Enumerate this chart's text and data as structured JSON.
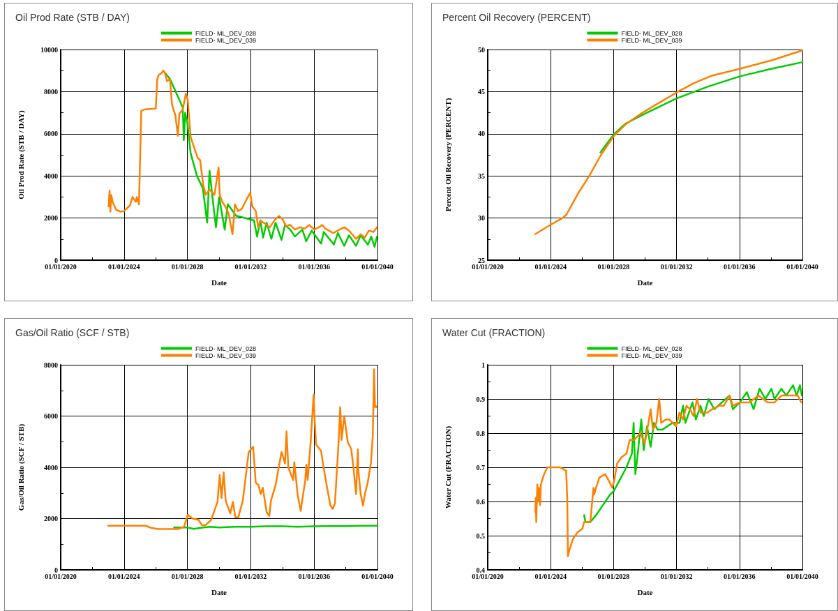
{
  "chart_data": [
    {
      "type": "line",
      "title": "Oil Prod Rate (STB / DAY)",
      "xlabel": "Date",
      "ylabel": "Oil Prod Rate (STB / DAY)",
      "grid": true,
      "legend": "top",
      "marker": "none",
      "line_style": "solid",
      "xlim": [
        "2020-01-01",
        "2040-01-01"
      ],
      "xticks": [
        {
          "value": "2020-01-01",
          "label": "01/01/2020"
        },
        {
          "value": "2022-01-01",
          "label": null
        },
        {
          "value": "2024-01-01",
          "label": "01/01/2024"
        },
        {
          "value": "2026-01-01",
          "label": null
        },
        {
          "value": "2028-01-01",
          "label": "01/01/2028"
        },
        {
          "value": "2030-01-01",
          "label": null
        },
        {
          "value": "2032-01-01",
          "label": "01/01/2032"
        },
        {
          "value": "2034-01-01",
          "label": null
        },
        {
          "value": "2036-01-01",
          "label": "01/01/2036"
        },
        {
          "value": "2038-01-01",
          "label": null
        },
        {
          "value": "2040-01-01",
          "label": "01/01/2040"
        }
      ],
      "ylim": [
        0,
        10000
      ],
      "yticks": [
        0,
        {
          "value": 1000,
          "label": null
        },
        2000,
        {
          "value": 3000,
          "label": null
        },
        4000,
        {
          "value": 5000,
          "label": null
        },
        6000,
        {
          "value": 7000,
          "label": null
        },
        8000,
        {
          "value": 9000,
          "label": null
        },
        10000
      ],
      "series": [
        {
          "name": "FIELD- ML_DEV_028",
          "color": "#00cc00",
          "x": [
            "2026-06-20",
            "2026-11-25",
            "2027-09-15",
            "2027-10-10",
            "2027-11-10",
            "2028-01-01",
            "2028-03-15",
            "2028-08-10",
            "2028-12-20",
            "2029-04-01",
            "2029-05-25",
            "2029-07-20",
            "2029-10-20",
            "2030-01-01",
            "2030-05-10",
            "2030-07-20",
            "2031-01-25",
            "2032-03-15",
            "2032-05-25",
            "2032-08-10",
            "2032-10-10",
            "2033-01-01",
            "2033-04-20",
            "2033-07-25",
            "2033-12-10",
            "2034-03-01",
            "2034-07-01",
            "2034-10-15",
            "2035-04-05",
            "2035-07-01",
            "2035-11-05",
            "2036-06-10",
            "2036-08-10",
            "2037-04-01",
            "2037-07-01",
            "2037-11-25",
            "2038-03-15",
            "2038-08-25",
            "2038-12-10",
            "2039-05-25",
            "2039-08-10",
            "2039-10-25",
            "2039-12-20"
          ],
          "values": [
            9000,
            8600,
            7250,
            5700,
            7000,
            6500,
            5080,
            3980,
            3430,
            1780,
            4250,
            3200,
            1560,
            2990,
            1450,
            2660,
            2110,
            1890,
            1120,
            1890,
            1070,
            1780,
            1010,
            1780,
            960,
            1670,
            1450,
            1120,
            1450,
            900,
            1400,
            790,
            1340,
            740,
            1290,
            680,
            1180,
            680,
            1180,
            740,
            1120,
            630,
            1120
          ]
        },
        {
          "name": "FIELD- ML_DEV_039",
          "color": "#ff8000",
          "x": [
            "2023-01-10",
            "2023-02-01",
            "2023-02-20",
            "2023-03-10",
            "2023-04-15",
            "2023-07-01",
            "2023-10-15",
            "2024-01-01",
            "2024-05-15",
            "2024-07-15",
            "2024-10-01",
            "2024-10-20",
            "2024-12-10",
            "2025-01-01",
            "2025-02-01",
            "2025-04-10",
            "2026-01-01",
            "2026-02-05",
            "2026-03-10",
            "2026-05-15",
            "2026-06-20",
            "2026-08-01",
            "2026-09-15",
            "2026-11-25",
            "2027-01-10",
            "2027-04-01",
            "2027-05-25",
            "2027-07-01",
            "2027-09-15",
            "2027-11-25",
            "2028-01-10",
            "2028-03-15",
            "2028-05-10",
            "2028-08-25",
            "2028-10-20",
            "2029-01-01",
            "2029-03-01",
            "2029-05-25",
            "2029-09-15",
            "2029-12-20",
            "2030-01-15",
            "2030-03-15",
            "2030-05-25",
            "2030-08-10",
            "2030-11-05",
            "2031-01-01",
            "2031-03-15",
            "2031-06-10",
            "2031-09-25",
            "2031-12-20",
            "2032-02-05",
            "2032-04-25",
            "2032-06-20",
            "2032-08-10",
            "2032-11-25",
            "2033-03-15",
            "2033-07-01",
            "2033-10-15",
            "2034-01-01",
            "2034-03-25",
            "2034-07-01",
            "2034-10-15",
            "2035-02-05",
            "2035-05-25",
            "2035-09-15",
            "2036-01-01",
            "2036-04-20",
            "2036-07-01",
            "2036-09-15",
            "2037-03-15",
            "2037-07-01",
            "2037-11-25",
            "2038-03-15",
            "2038-08-25",
            "2038-12-10",
            "2039-03-15",
            "2039-06-15",
            "2039-10-01",
            "2039-12-20"
          ],
          "values": [
            2550,
            3300,
            2300,
            3100,
            2750,
            2400,
            2300,
            2330,
            2600,
            3000,
            2770,
            3000,
            2650,
            4500,
            7100,
            7150,
            7200,
            8600,
            8800,
            8870,
            9000,
            8900,
            8500,
            8600,
            7400,
            6850,
            5900,
            6950,
            7150,
            7900,
            7600,
            5850,
            5500,
            4850,
            4750,
            3550,
            3100,
            3350,
            3100,
            4400,
            3100,
            2770,
            2550,
            2200,
            1230,
            2650,
            2330,
            2440,
            2880,
            3200,
            2550,
            2330,
            1560,
            1890,
            1730,
            1560,
            1890,
            2100,
            1950,
            1620,
            1670,
            1450,
            1560,
            1500,
            1670,
            1450,
            1560,
            1670,
            1500,
            1290,
            1400,
            1560,
            1400,
            1010,
            1230,
            1070,
            1400,
            1340,
            1560
          ]
        }
      ]
    },
    {
      "type": "line",
      "title": "Percent Oil Recovery (PERCENT)",
      "xlabel": "Date",
      "ylabel": "Percent Oil Recovery (PERCENT)",
      "grid": true,
      "legend": "top",
      "marker": "none",
      "line_style": "solid",
      "xlim": [
        "2020-01-01",
        "2040-01-01"
      ],
      "xticks": [
        {
          "value": "2020-01-01",
          "label": "01/01/2020"
        },
        {
          "value": "2022-01-01",
          "label": null
        },
        {
          "value": "2024-01-01",
          "label": "01/01/2024"
        },
        {
          "value": "2026-01-01",
          "label": null
        },
        {
          "value": "2028-01-01",
          "label": "01/01/2028"
        },
        {
          "value": "2030-01-01",
          "label": null
        },
        {
          "value": "2032-01-01",
          "label": "01/01/2032"
        },
        {
          "value": "2034-01-01",
          "label": null
        },
        {
          "value": "2036-01-01",
          "label": "01/01/2036"
        },
        {
          "value": "2038-01-01",
          "label": null
        },
        {
          "value": "2040-01-01",
          "label": "01/01/2040"
        }
      ],
      "ylim": [
        25,
        50
      ],
      "yticks": [
        25,
        {
          "value": 27.5,
          "label": null
        },
        30,
        {
          "value": 32.5,
          "label": null
        },
        35,
        {
          "value": 37.5,
          "label": null
        },
        40,
        {
          "value": 42.5,
          "label": null
        },
        45,
        {
          "value": 47.5,
          "label": null
        },
        50
      ],
      "series": [
        {
          "name": "FIELD- ML_DEV_028",
          "color": "#00cc00",
          "x": [
            "2027-03-01",
            "2028-01-01",
            "2028-10-01",
            "2030-01-01",
            "2032-01-01",
            "2034-01-01",
            "2036-01-01",
            "2038-01-01",
            "2040-01-01"
          ],
          "values": [
            37.8,
            39.9,
            41.2,
            42.4,
            44.2,
            45.6,
            46.8,
            47.7,
            48.5
          ]
        },
        {
          "name": "FIELD- ML_DEV_039",
          "color": "#ff8000",
          "x": [
            "2023-01-10",
            "2024-01-01",
            "2024-10-01",
            "2025-01-01",
            "2025-09-15",
            "2026-06-15",
            "2027-03-15",
            "2028-01-01",
            "2028-10-01",
            "2029-11-01",
            "2030-12-01",
            "2032-01-01",
            "2033-02-01",
            "2034-04-01",
            "2036-01-01",
            "2038-01-01",
            "2040-01-01"
          ],
          "values": [
            28.1,
            29.2,
            30.0,
            30.4,
            32.8,
            35.0,
            37.5,
            39.7,
            41.1,
            42.5,
            43.7,
            44.9,
            46.0,
            46.9,
            47.7,
            48.7,
            49.9
          ]
        }
      ]
    },
    {
      "type": "line",
      "title": "Gas/Oil Ratio (SCF / STB)",
      "xlabel": "Date",
      "ylabel": "Gas/Oil Ratio (SCF / STB)",
      "grid": true,
      "legend": "top",
      "marker": "none",
      "line_style": "solid",
      "xlim": [
        "2020-01-01",
        "2040-01-01"
      ],
      "xticks": [
        {
          "value": "2020-01-01",
          "label": "01/01/2020"
        },
        {
          "value": "2022-01-01",
          "label": null
        },
        {
          "value": "2024-01-01",
          "label": "01/01/2024"
        },
        {
          "value": "2026-01-01",
          "label": null
        },
        {
          "value": "2028-01-01",
          "label": "01/01/2028"
        },
        {
          "value": "2030-01-01",
          "label": null
        },
        {
          "value": "2032-01-01",
          "label": "01/01/2032"
        },
        {
          "value": "2034-01-01",
          "label": null
        },
        {
          "value": "2036-01-01",
          "label": "01/01/2036"
        },
        {
          "value": "2038-01-01",
          "label": null
        },
        {
          "value": "2040-01-01",
          "label": "01/01/2040"
        }
      ],
      "ylim": [
        0,
        8000
      ],
      "yticks": [
        0,
        {
          "value": 1000,
          "label": null
        },
        2000,
        {
          "value": 3000,
          "label": null
        },
        4000,
        {
          "value": 5000,
          "label": null
        },
        6000,
        {
          "value": 7000,
          "label": null
        },
        8000
      ],
      "series": [
        {
          "name": "FIELD- ML_DEV_028",
          "color": "#00cc00",
          "x": [
            "2027-03-01",
            "2028-01-01",
            "2028-06-01",
            "2029-01-01",
            "2029-06-01",
            "2030-01-01",
            "2031-01-01",
            "2032-01-01",
            "2033-01-01",
            "2034-01-01",
            "2035-01-01",
            "2036-01-01",
            "2037-01-01",
            "2038-01-01",
            "2039-01-01",
            "2040-01-01"
          ],
          "values": [
            1650,
            1650,
            1600,
            1650,
            1680,
            1650,
            1680,
            1680,
            1700,
            1700,
            1680,
            1700,
            1710,
            1710,
            1720,
            1720
          ]
        },
        {
          "name": "FIELD- ML_DEV_039",
          "color": "#ff8000",
          "x": [
            "2023-01-01",
            "2025-05-15",
            "2025-09-15",
            "2026-03-01",
            "2027-06-01",
            "2027-10-15",
            "2028-01-10",
            "2028-05-01",
            "2028-09-15",
            "2028-12-01",
            "2029-03-01",
            "2029-07-01",
            "2029-11-25",
            "2030-01-15",
            "2030-02-25",
            "2030-04-15",
            "2030-06-01",
            "2030-09-15",
            "2030-11-15",
            "2031-01-10",
            "2031-03-20",
            "2031-07-01",
            "2031-11-15",
            "2032-02-25",
            "2032-04-25",
            "2032-07-01",
            "2032-08-15",
            "2032-10-05",
            "2033-01-01",
            "2033-03-05",
            "2033-04-10",
            "2033-07-25",
            "2033-12-10",
            "2034-03-01",
            "2034-04-05",
            "2034-05-15",
            "2034-09-05",
            "2034-10-01",
            "2034-12-20",
            "2035-02-25",
            "2035-06-10",
            "2035-07-05",
            "2035-08-05",
            "2035-10-10",
            "2035-12-20",
            "2036-01-10",
            "2036-02-15",
            "2036-06-10",
            "2036-08-05",
            "2036-10-25",
            "2037-01-10",
            "2037-03-05",
            "2037-04-25",
            "2037-07-15",
            "2037-08-25",
            "2037-09-25",
            "2037-11-25",
            "2038-02-15",
            "2038-05-05",
            "2038-07-01",
            "2038-08-25",
            "2038-10-05",
            "2038-10-15",
            "2038-12-10",
            "2039-02-01",
            "2039-03-15",
            "2039-05-20",
            "2039-08-05",
            "2039-09-15",
            "2039-10-15",
            "2039-11-05",
            "2039-11-25",
            "2039-12-10"
          ],
          "values": [
            1720,
            1720,
            1640,
            1590,
            1590,
            1680,
            2150,
            2000,
            1950,
            1740,
            1750,
            1950,
            2650,
            3700,
            2800,
            3800,
            2700,
            2200,
            2650,
            2050,
            2050,
            2700,
            4600,
            4800,
            3400,
            3300,
            2950,
            3200,
            2250,
            2100,
            2700,
            3300,
            4600,
            4150,
            5400,
            4000,
            3500,
            4200,
            2900,
            2300,
            3500,
            4100,
            3500,
            4900,
            6830,
            5950,
            4890,
            4630,
            4010,
            3220,
            2510,
            2380,
            2600,
            4890,
            6350,
            5070,
            6000,
            4980,
            4720,
            3920,
            2950,
            4700,
            3920,
            2950,
            2510,
            2950,
            3400,
            4190,
            5250,
            7820,
            6350,
            6390,
            6350
          ]
        }
      ]
    },
    {
      "type": "line",
      "title": "Water Cut (FRACTION)",
      "xlabel": "Date",
      "ylabel": "Water Cut (FRACTION)",
      "grid": true,
      "legend": "top",
      "marker": "none",
      "line_style": "solid",
      "xlim": [
        "2020-01-01",
        "2040-01-01"
      ],
      "xticks": [
        {
          "value": "2020-01-01",
          "label": "01/01/2020"
        },
        {
          "value": "2022-01-01",
          "label": null
        },
        {
          "value": "2024-01-01",
          "label": "01/01/2024"
        },
        {
          "value": "2026-01-01",
          "label": null
        },
        {
          "value": "2028-01-01",
          "label": "01/01/2028"
        },
        {
          "value": "2030-01-01",
          "label": null
        },
        {
          "value": "2032-01-01",
          "label": "01/01/2032"
        },
        {
          "value": "2034-01-01",
          "label": null
        },
        {
          "value": "2036-01-01",
          "label": "01/01/2036"
        },
        {
          "value": "2038-01-01",
          "label": null
        },
        {
          "value": "2040-01-01",
          "label": "01/01/2040"
        }
      ],
      "ylim": [
        0.4,
        1
      ],
      "yticks": [
        0.4,
        {
          "value": 0.45,
          "label": null
        },
        0.5,
        {
          "value": 0.55,
          "label": null
        },
        0.6,
        {
          "value": 0.65,
          "label": null
        },
        0.7,
        {
          "value": 0.75,
          "label": null
        },
        0.8,
        {
          "value": 0.85,
          "label": null
        },
        0.9,
        {
          "value": 0.95,
          "label": null
        },
        1
      ],
      "series": [
        {
          "name": "FIELD- ML_DEV_028",
          "color": "#00cc00",
          "x": [
            "2026-02-15",
            "2026-03-20",
            "2026-07-10",
            "2026-11-20",
            "2027-05-01",
            "2027-10-10",
            "2028-01-01",
            "2028-05-10",
            "2028-10-25",
            "2029-03-01",
            "2029-04-10",
            "2029-05-20",
            "2029-07-15",
            "2029-10-05",
            "2029-11-30",
            "2030-02-15",
            "2030-05-10",
            "2030-07-25",
            "2030-10-20",
            "2031-02-01",
            "2031-10-01",
            "2032-03-10",
            "2032-06-01",
            "2032-07-25",
            "2033-01-05",
            "2033-03-25",
            "2033-07-10",
            "2033-09-25",
            "2034-01-15",
            "2034-05-25",
            "2035-05-15",
            "2035-08-01",
            "2036-01-10",
            "2036-06-20",
            "2036-11-25",
            "2037-04-10",
            "2037-08-25",
            "2038-01-10",
            "2038-03-25",
            "2038-09-01",
            "2038-12-20",
            "2039-05-30",
            "2039-08-20",
            "2039-11-05",
            "2039-12-20"
          ],
          "values": [
            0.56,
            0.54,
            0.54,
            0.56,
            0.59,
            0.62,
            0.63,
            0.66,
            0.7,
            0.74,
            0.83,
            0.68,
            0.74,
            0.84,
            0.75,
            0.82,
            0.76,
            0.83,
            0.81,
            0.81,
            0.83,
            0.83,
            0.88,
            0.83,
            0.89,
            0.84,
            0.88,
            0.85,
            0.9,
            0.87,
            0.91,
            0.87,
            0.89,
            0.92,
            0.87,
            0.93,
            0.9,
            0.93,
            0.9,
            0.93,
            0.91,
            0.94,
            0.91,
            0.94,
            0.91
          ]
        },
        {
          "name": "FIELD- ML_DEV_039",
          "color": "#ff8000",
          "x": [
            "2023-01-10",
            "2023-01-20",
            "2023-02-01",
            "2023-02-25",
            "2023-03-15",
            "2023-04-10",
            "2023-05-01",
            "2023-05-20",
            "2023-08-01",
            "2023-10-20",
            "2024-02-01",
            "2024-05-20",
            "2024-08-05",
            "2024-12-25",
            "2025-01-20",
            "2025-02-05",
            "2025-03-15",
            "2025-06-01",
            "2025-09-15",
            "2026-01-05",
            "2026-02-15",
            "2026-03-25",
            "2026-07-10",
            "2026-09-20",
            "2026-10-05",
            "2026-11-20",
            "2027-02-05",
            "2027-06-20",
            "2027-09-15",
            "2027-12-01",
            "2028-01-15",
            "2028-03-20",
            "2028-07-05",
            "2028-10-25",
            "2029-01-10",
            "2029-04-25",
            "2029-09-10",
            "2029-12-25",
            "2030-03-20",
            "2030-05-10",
            "2030-07-01",
            "2030-09-20",
            "2030-11-25",
            "2031-01-10",
            "2031-04-25",
            "2031-07-15",
            "2031-12-20",
            "2032-03-10",
            "2032-06-01",
            "2032-08-20",
            "2032-11-10",
            "2033-01-30",
            "2033-04-20",
            "2033-07-10",
            "2033-12-20",
            "2034-04-05",
            "2034-09-15",
            "2035-01-01",
            "2035-05-15",
            "2035-08-01",
            "2036-01-10",
            "2036-08-15",
            "2037-03-15",
            "2037-10-15",
            "2038-03-25",
            "2038-09-01",
            "2039-04-05",
            "2039-09-15",
            "2039-12-05"
          ],
          "values": [
            0.57,
            0.61,
            0.54,
            0.65,
            0.6,
            0.64,
            0.59,
            0.65,
            0.68,
            0.7,
            0.7,
            0.7,
            0.7,
            0.69,
            0.61,
            0.44,
            0.46,
            0.49,
            0.51,
            0.52,
            0.54,
            0.54,
            0.54,
            0.64,
            0.62,
            0.64,
            0.67,
            0.68,
            0.66,
            0.64,
            0.66,
            0.71,
            0.73,
            0.74,
            0.78,
            0.78,
            0.8,
            0.77,
            0.83,
            0.87,
            0.81,
            0.83,
            0.9,
            0.83,
            0.84,
            0.84,
            0.82,
            0.86,
            0.84,
            0.88,
            0.87,
            0.85,
            0.9,
            0.86,
            0.86,
            0.87,
            0.88,
            0.88,
            0.91,
            0.88,
            0.89,
            0.89,
            0.91,
            0.89,
            0.89,
            0.91,
            0.91,
            0.91,
            0.89
          ]
        }
      ]
    }
  ]
}
